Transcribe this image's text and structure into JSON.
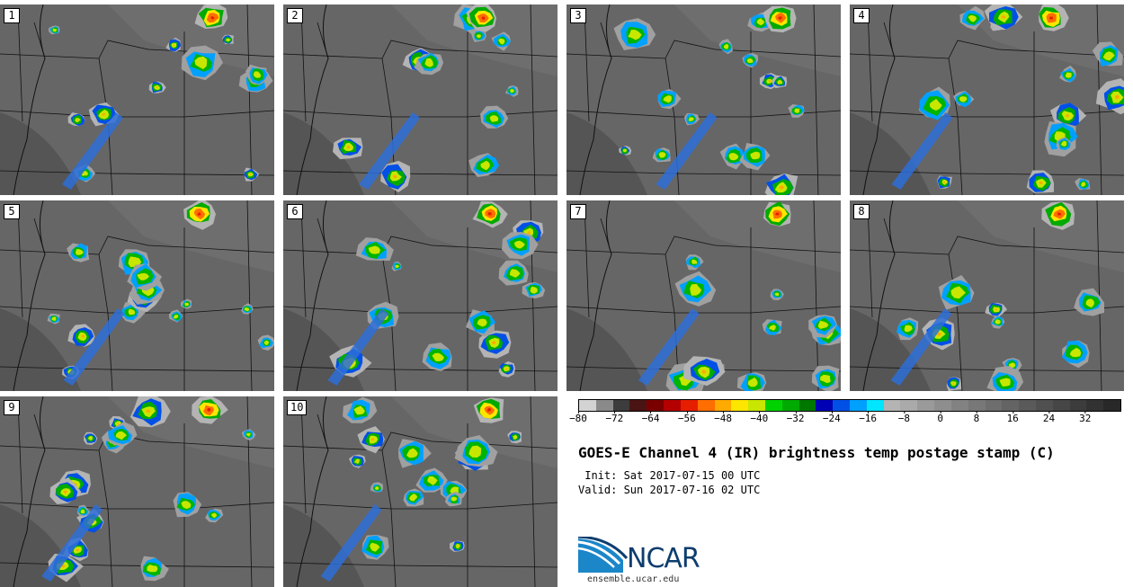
{
  "title": "GOES-E Channel 4 (IR) brightness temp postage stamp (C)",
  "init_label": " Init: Sat 2017-07-15 00 UTC",
  "valid_label": "Valid: Sun 2017-07-16 02 UTC",
  "logo": {
    "text": "NCAR",
    "icon": "ncar-logo-icon"
  },
  "site": "ensemble.ucar.edu",
  "panels": [
    {
      "label": "1"
    },
    {
      "label": "2"
    },
    {
      "label": "3"
    },
    {
      "label": "4"
    },
    {
      "label": "5"
    },
    {
      "label": "6"
    },
    {
      "label": "7"
    },
    {
      "label": "8"
    },
    {
      "label": "9"
    },
    {
      "label": "10"
    }
  ],
  "colorbar": {
    "min": -80,
    "max": 40,
    "ticks": [
      "−80",
      "−72",
      "−64",
      "−56",
      "−48",
      "−40",
      "−32",
      "−24",
      "−16",
      "−8",
      "0",
      "8",
      "16",
      "24",
      "32"
    ],
    "colors": [
      "#d3d3d3",
      "#8a8a8a",
      "#3c3c3c",
      "#4a1414",
      "#7a0000",
      "#b40000",
      "#e61e00",
      "#ff6e00",
      "#ffaa00",
      "#ffe600",
      "#c8e600",
      "#00d200",
      "#00aa00",
      "#007800",
      "#0000b4",
      "#0050e6",
      "#00a0ff",
      "#00e6ff",
      "#b4b4b4",
      "#aaaaaa",
      "#9a9a9a",
      "#8e8e8e",
      "#828282",
      "#787878",
      "#6e6e6e",
      "#646464",
      "#5a5a5a",
      "#505050",
      "#464646",
      "#3c3c3c",
      "#323232",
      "#282828"
    ]
  }
}
